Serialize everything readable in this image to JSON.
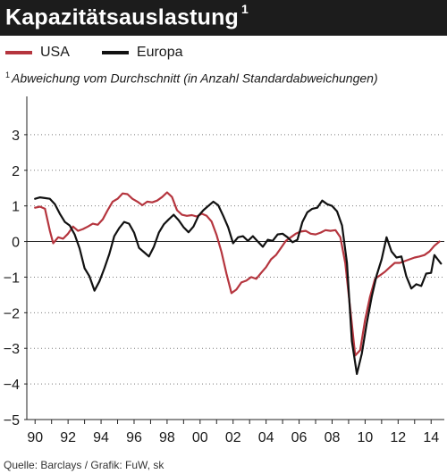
{
  "header": {
    "title": "Kapazitätsauslastung",
    "title_superscript": "1"
  },
  "footnote": {
    "marker": "1",
    "text": "Abweichung vom Durchschnitt (in Anzahl Standardabweichungen)"
  },
  "source": "Quelle: Barclays / Grafik: FuW, sk",
  "colors": {
    "usa": "#b5353e",
    "europa": "#111111",
    "title_bg": "#1c1c1c"
  },
  "chart_data": {
    "type": "line",
    "title": "Kapazitätsauslastung",
    "xlabel": "",
    "ylabel": "",
    "xlim": [
      1989.5,
      2014.8
    ],
    "ylim": [
      -5,
      4
    ],
    "y_ticks": [
      3,
      2,
      1,
      0,
      -1,
      -2,
      -3,
      -4,
      -5
    ],
    "y_tick_labels": [
      "3",
      "2",
      "1",
      "0",
      "−1",
      "−2",
      "−3",
      "−4",
      "−5"
    ],
    "x_ticks": [
      1990,
      1992,
      1994,
      1996,
      1998,
      2000,
      2002,
      2004,
      2006,
      2008,
      2010,
      2012,
      2014
    ],
    "x_tick_labels": [
      "90",
      "92",
      "94",
      "96",
      "98",
      "00",
      "02",
      "04",
      "06",
      "08",
      "10",
      "12",
      "14"
    ],
    "grid": "horizontal dotted",
    "legend_position": "top-left",
    "series": [
      {
        "name": "USA",
        "color": "#b5353e",
        "points": [
          [
            1990.0,
            0.95
          ],
          [
            1990.3,
            0.98
          ],
          [
            1990.6,
            0.92
          ],
          [
            1990.9,
            0.3
          ],
          [
            1991.1,
            -0.05
          ],
          [
            1991.4,
            0.12
          ],
          [
            1991.7,
            0.08
          ],
          [
            1992.0,
            0.22
          ],
          [
            1992.3,
            0.42
          ],
          [
            1992.6,
            0.3
          ],
          [
            1992.9,
            0.35
          ],
          [
            1993.2,
            0.42
          ],
          [
            1993.5,
            0.5
          ],
          [
            1993.8,
            0.47
          ],
          [
            1994.1,
            0.62
          ],
          [
            1994.4,
            0.88
          ],
          [
            1994.7,
            1.12
          ],
          [
            1995.0,
            1.2
          ],
          [
            1995.3,
            1.35
          ],
          [
            1995.6,
            1.33
          ],
          [
            1995.9,
            1.2
          ],
          [
            1996.2,
            1.12
          ],
          [
            1996.5,
            1.02
          ],
          [
            1996.8,
            1.12
          ],
          [
            1997.1,
            1.1
          ],
          [
            1997.4,
            1.15
          ],
          [
            1997.7,
            1.25
          ],
          [
            1998.0,
            1.38
          ],
          [
            1998.3,
            1.25
          ],
          [
            1998.6,
            0.88
          ],
          [
            1998.9,
            0.75
          ],
          [
            1999.2,
            0.72
          ],
          [
            1999.5,
            0.74
          ],
          [
            1999.8,
            0.7
          ],
          [
            2000.1,
            0.78
          ],
          [
            2000.4,
            0.72
          ],
          [
            2000.7,
            0.56
          ],
          [
            2001.0,
            0.18
          ],
          [
            2001.3,
            -0.3
          ],
          [
            2001.6,
            -0.9
          ],
          [
            2001.9,
            -1.45
          ],
          [
            2002.2,
            -1.35
          ],
          [
            2002.5,
            -1.15
          ],
          [
            2002.8,
            -1.1
          ],
          [
            2003.1,
            -1.0
          ],
          [
            2003.4,
            -1.05
          ],
          [
            2003.7,
            -0.88
          ],
          [
            2004.0,
            -0.72
          ],
          [
            2004.3,
            -0.5
          ],
          [
            2004.6,
            -0.38
          ],
          [
            2004.9,
            -0.18
          ],
          [
            2005.2,
            0.02
          ],
          [
            2005.5,
            0.12
          ],
          [
            2005.8,
            0.22
          ],
          [
            2006.1,
            0.28
          ],
          [
            2006.4,
            0.3
          ],
          [
            2006.7,
            0.22
          ],
          [
            2007.0,
            0.2
          ],
          [
            2007.3,
            0.25
          ],
          [
            2007.6,
            0.32
          ],
          [
            2007.9,
            0.3
          ],
          [
            2008.2,
            0.32
          ],
          [
            2008.5,
            0.12
          ],
          [
            2008.8,
            -0.6
          ],
          [
            2009.1,
            -1.9
          ],
          [
            2009.4,
            -3.2
          ],
          [
            2009.7,
            -3.05
          ],
          [
            2010.0,
            -2.2
          ],
          [
            2010.3,
            -1.55
          ],
          [
            2010.6,
            -1.05
          ],
          [
            2010.9,
            -0.95
          ],
          [
            2011.2,
            -0.85
          ],
          [
            2011.5,
            -0.72
          ],
          [
            2011.8,
            -0.6
          ],
          [
            2012.1,
            -0.6
          ],
          [
            2012.4,
            -0.55
          ],
          [
            2012.7,
            -0.5
          ],
          [
            2013.0,
            -0.45
          ],
          [
            2013.3,
            -0.42
          ],
          [
            2013.6,
            -0.38
          ],
          [
            2013.9,
            -0.28
          ],
          [
            2014.2,
            -0.12
          ],
          [
            2014.5,
            0.0
          ]
        ]
      },
      {
        "name": "Europa",
        "color": "#111111",
        "points": [
          [
            1990.0,
            1.2
          ],
          [
            1990.3,
            1.24
          ],
          [
            1990.6,
            1.22
          ],
          [
            1990.9,
            1.2
          ],
          [
            1991.2,
            1.05
          ],
          [
            1991.5,
            0.78
          ],
          [
            1991.8,
            0.55
          ],
          [
            1992.1,
            0.45
          ],
          [
            1992.4,
            0.2
          ],
          [
            1992.7,
            -0.2
          ],
          [
            1993.0,
            -0.75
          ],
          [
            1993.3,
            -0.98
          ],
          [
            1993.6,
            -1.38
          ],
          [
            1993.9,
            -1.12
          ],
          [
            1994.2,
            -0.75
          ],
          [
            1994.5,
            -0.35
          ],
          [
            1994.8,
            0.15
          ],
          [
            1995.1,
            0.38
          ],
          [
            1995.4,
            0.55
          ],
          [
            1995.7,
            0.5
          ],
          [
            1996.0,
            0.25
          ],
          [
            1996.3,
            -0.18
          ],
          [
            1996.6,
            -0.3
          ],
          [
            1996.9,
            -0.42
          ],
          [
            1997.2,
            -0.15
          ],
          [
            1997.5,
            0.25
          ],
          [
            1997.8,
            0.48
          ],
          [
            1998.1,
            0.62
          ],
          [
            1998.4,
            0.75
          ],
          [
            1998.7,
            0.6
          ],
          [
            1999.0,
            0.4
          ],
          [
            1999.3,
            0.26
          ],
          [
            1999.6,
            0.42
          ],
          [
            1999.9,
            0.72
          ],
          [
            2000.2,
            0.88
          ],
          [
            2000.5,
            1.0
          ],
          [
            2000.8,
            1.12
          ],
          [
            2001.1,
            1.02
          ],
          [
            2001.4,
            0.72
          ],
          [
            2001.7,
            0.4
          ],
          [
            2002.0,
            -0.05
          ],
          [
            2002.3,
            0.12
          ],
          [
            2002.6,
            0.15
          ],
          [
            2002.9,
            0.02
          ],
          [
            2003.2,
            0.15
          ],
          [
            2003.5,
            0.0
          ],
          [
            2003.8,
            -0.15
          ],
          [
            2004.1,
            0.05
          ],
          [
            2004.4,
            0.02
          ],
          [
            2004.7,
            0.2
          ],
          [
            2005.0,
            0.22
          ],
          [
            2005.3,
            0.12
          ],
          [
            2005.6,
            -0.02
          ],
          [
            2005.9,
            0.05
          ],
          [
            2006.2,
            0.55
          ],
          [
            2006.5,
            0.82
          ],
          [
            2006.8,
            0.92
          ],
          [
            2007.1,
            0.95
          ],
          [
            2007.4,
            1.15
          ],
          [
            2007.7,
            1.05
          ],
          [
            2008.0,
            1.0
          ],
          [
            2008.3,
            0.85
          ],
          [
            2008.6,
            0.45
          ],
          [
            2008.9,
            -0.6
          ],
          [
            2009.2,
            -2.8
          ],
          [
            2009.5,
            -3.72
          ],
          [
            2009.8,
            -3.15
          ],
          [
            2010.1,
            -2.3
          ],
          [
            2010.4,
            -1.55
          ],
          [
            2010.7,
            -0.95
          ],
          [
            2011.0,
            -0.5
          ],
          [
            2011.3,
            0.12
          ],
          [
            2011.6,
            -0.28
          ],
          [
            2011.9,
            -0.45
          ],
          [
            2012.2,
            -0.42
          ],
          [
            2012.5,
            -0.98
          ],
          [
            2012.8,
            -1.32
          ],
          [
            2013.1,
            -1.2
          ],
          [
            2013.4,
            -1.25
          ],
          [
            2013.7,
            -0.9
          ],
          [
            2014.0,
            -0.88
          ],
          [
            2014.2,
            -0.38
          ],
          [
            2014.4,
            -0.5
          ],
          [
            2014.6,
            -0.62
          ]
        ]
      }
    ]
  }
}
